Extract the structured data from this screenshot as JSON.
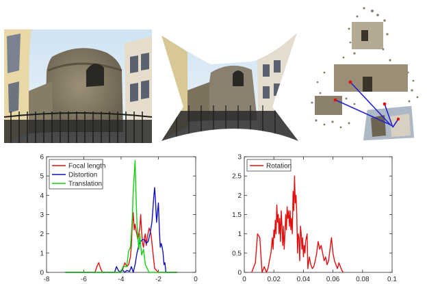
{
  "figure": {
    "panels": [
      "fisheye-photo",
      "undistorted-photo",
      "sparse-3d-reconstruction",
      "histogram-left",
      "histogram-right"
    ]
  },
  "chart_data": [
    {
      "type": "line",
      "xlim": [
        -8,
        0
      ],
      "ylim": [
        0,
        6
      ],
      "xticks": [
        -8,
        -6,
        -4,
        -2,
        0
      ],
      "yticks": [
        0,
        1,
        2,
        3,
        4,
        5,
        6
      ],
      "xtick_labels": [
        "-8",
        "-6",
        "-4",
        "-2",
        "0"
      ],
      "ytick_labels": [
        "0",
        "1",
        "2",
        "3",
        "4",
        "5",
        "6"
      ],
      "grid": false,
      "legend_position": "top-left",
      "series": [
        {
          "name": "Focal length",
          "color": "#e01010",
          "x": [
            -7.0,
            -5.4,
            -5.3,
            -5.2,
            -5.1,
            -5.0,
            -4.0,
            -3.9,
            -3.8,
            -3.7,
            -3.6,
            -3.5,
            -3.45,
            -3.4,
            -3.35,
            -3.3,
            -3.25,
            -3.2,
            -3.1,
            -3.0,
            -2.95,
            -2.9,
            -2.85,
            -2.8,
            -2.75,
            -2.7,
            -2.65,
            -2.6,
            -2.5,
            -2.4,
            -2.3,
            -2.2,
            -2.0,
            -1.5,
            -1.0
          ],
          "y": [
            0,
            0,
            0.3,
            0.5,
            0.2,
            0,
            0,
            0.2,
            0.5,
            0.3,
            0.4,
            0.8,
            1.4,
            2.5,
            3.1,
            2.2,
            2.5,
            2.2,
            1.7,
            2.3,
            3.0,
            2.1,
            1.5,
            1.3,
            1.8,
            2.0,
            1.4,
            1.8,
            2.3,
            2.0,
            1.1,
            0.2,
            0,
            0,
            0
          ]
        },
        {
          "name": "Distortion",
          "color": "#1010c0",
          "x": [
            -7.0,
            -4.35,
            -4.25,
            -4.15,
            -4.05,
            -3.95,
            -3.8,
            -3.7,
            -3.55,
            -3.45,
            -3.35,
            -3.25,
            -3.15,
            -3.05,
            -2.95,
            -2.85,
            -2.75,
            -2.65,
            -2.55,
            -2.45,
            -2.35,
            -2.3,
            -2.25,
            -2.2,
            -2.15,
            -2.1,
            -2.05,
            -2.0,
            -1.95,
            -1.9,
            -1.85,
            -1.8,
            -1.75,
            -1.7,
            -1.65,
            -1.6,
            -1.5,
            -1.0
          ],
          "y": [
            0,
            0,
            0.3,
            0.1,
            0,
            0.15,
            0,
            0.1,
            0.05,
            0.3,
            0,
            0.4,
            1.0,
            1.4,
            1.6,
            1.7,
            1.7,
            1.5,
            1.6,
            2.0,
            2.6,
            3.2,
            3.9,
            4.4,
            3.6,
            2.6,
            3.1,
            3.6,
            2.2,
            1.3,
            1.5,
            1.3,
            1.0,
            0.4,
            0.5,
            0,
            0,
            0
          ]
        },
        {
          "name": "Translation",
          "color": "#10d010",
          "x": [
            -7.0,
            -4.0,
            -3.9,
            -3.7,
            -3.6,
            -3.5,
            -3.45,
            -3.4,
            -3.35,
            -3.3,
            -3.25,
            -3.2,
            -3.15,
            -3.1,
            -3.05,
            -3.0,
            -2.95,
            -2.9,
            -2.8,
            -2.7,
            -2.6,
            -2.5,
            -2.0,
            -1.5,
            -1.0
          ],
          "y": [
            0,
            0,
            0.3,
            0.3,
            1.1,
            1.3,
            2.0,
            2.8,
            4.2,
            5.0,
            5.8,
            4.0,
            2.5,
            1.8,
            1.2,
            2.0,
            1.4,
            0.9,
            1.2,
            0.4,
            0.2,
            0,
            0,
            0,
            0
          ]
        }
      ]
    },
    {
      "type": "line",
      "xlim": [
        0,
        0.1
      ],
      "ylim": [
        0,
        3
      ],
      "xticks": [
        0,
        0.02,
        0.04,
        0.06,
        0.08,
        0.1
      ],
      "yticks": [
        0,
        0.5,
        1,
        1.5,
        2,
        2.5,
        3
      ],
      "xtick_labels": [
        "0",
        "0.02",
        "0.04",
        "0.06",
        "0.08",
        "0.1"
      ],
      "ytick_labels": [
        "0",
        "0.5",
        "1",
        "1.5",
        "2",
        "2.5",
        "3"
      ],
      "grid": false,
      "legend_position": "top-left",
      "series": [
        {
          "name": "Rotation",
          "color": "#e01010",
          "x": [
            0.005,
            0.0075,
            0.009,
            0.0105,
            0.012,
            0.0135,
            0.015,
            0.016,
            0.017,
            0.018,
            0.019,
            0.0195,
            0.02,
            0.0205,
            0.021,
            0.0215,
            0.022,
            0.0225,
            0.023,
            0.0235,
            0.024,
            0.0245,
            0.025,
            0.0255,
            0.026,
            0.0265,
            0.027,
            0.0275,
            0.028,
            0.0285,
            0.029,
            0.0295,
            0.03,
            0.0305,
            0.031,
            0.0315,
            0.032,
            0.0325,
            0.033,
            0.0335,
            0.034,
            0.0345,
            0.035,
            0.0355,
            0.036,
            0.0365,
            0.037,
            0.0375,
            0.038,
            0.0385,
            0.039,
            0.0395,
            0.04,
            0.0405,
            0.041,
            0.0415,
            0.042,
            0.0425,
            0.043,
            0.044,
            0.045,
            0.046,
            0.047,
            0.048,
            0.049,
            0.05,
            0.051,
            0.052,
            0.053,
            0.054,
            0.055,
            0.056,
            0.057,
            0.058,
            0.059,
            0.06,
            0.061,
            0.062,
            0.063,
            0.064,
            0.065,
            0.066,
            0.067
          ],
          "y": [
            0,
            0.25,
            1.0,
            0.9,
            0,
            0.15,
            0,
            0.1,
            0.3,
            0.5,
            0.9,
            0.6,
            1.1,
            0.9,
            1.35,
            1.0,
            1.75,
            1.3,
            1.5,
            1.0,
            1.4,
            0.8,
            1.6,
            1.2,
            0.7,
            1.2,
            0.6,
            1.0,
            1.5,
            1.1,
            1.7,
            1.4,
            1.6,
            1.2,
            1.6,
            1.1,
            1.4,
            1.0,
            2.1,
            1.6,
            2.5,
            1.8,
            2.0,
            1.5,
            0.5,
            1.0,
            0.9,
            0.3,
            1.2,
            1.0,
            0.6,
            0.9,
            0.4,
            0.7,
            0.5,
            0.8,
            0.9,
            1.0,
            0.1,
            0.4,
            0.2,
            0.1,
            0.15,
            0.3,
            0.5,
            0.8,
            0.6,
            0.7,
            0.5,
            0.3,
            0.4,
            0.2,
            0.3,
            0.6,
            0.9,
            0.5,
            0.3,
            0.2,
            0.1,
            0.25,
            0.15,
            0.05,
            0
          ]
        }
      ]
    }
  ]
}
